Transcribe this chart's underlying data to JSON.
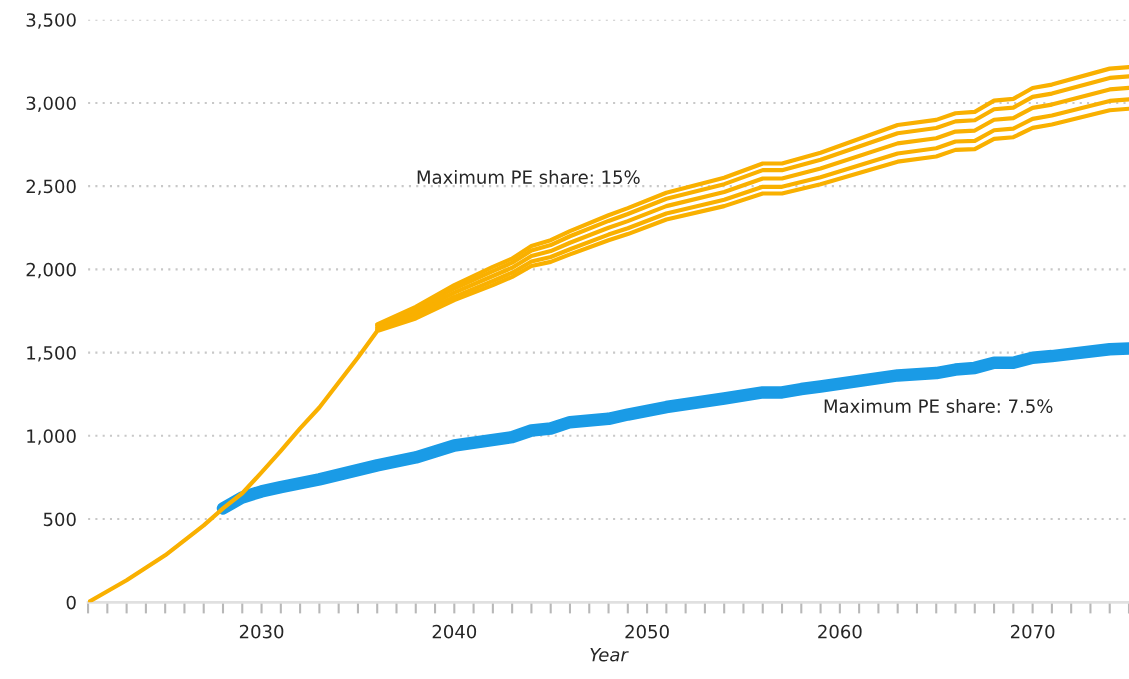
{
  "chart_data": {
    "type": "line",
    "xlabel": "Year",
    "xlim": [
      2021,
      2075
    ],
    "xticks": [
      {
        "value": 2021,
        "label": null
      },
      {
        "value": 2022,
        "label": null
      },
      {
        "value": 2023,
        "label": null
      },
      {
        "value": 2024,
        "label": null
      },
      {
        "value": 2025,
        "label": null
      },
      {
        "value": 2026,
        "label": null
      },
      {
        "value": 2027,
        "label": null
      },
      {
        "value": 2028,
        "label": null
      },
      {
        "value": 2029,
        "label": null
      },
      2030,
      {
        "value": 2031,
        "label": null
      },
      {
        "value": 2032,
        "label": null
      },
      {
        "value": 2033,
        "label": null
      },
      {
        "value": 2034,
        "label": null
      },
      {
        "value": 2035,
        "label": null
      },
      {
        "value": 2036,
        "label": null
      },
      {
        "value": 2037,
        "label": null
      },
      {
        "value": 2038,
        "label": null
      },
      {
        "value": 2039,
        "label": null
      },
      2040,
      {
        "value": 2041,
        "label": null
      },
      {
        "value": 2042,
        "label": null
      },
      {
        "value": 2043,
        "label": null
      },
      {
        "value": 2044,
        "label": null
      },
      {
        "value": 2045,
        "label": null
      },
      {
        "value": 2046,
        "label": null
      },
      {
        "value": 2047,
        "label": null
      },
      {
        "value": 2048,
        "label": null
      },
      {
        "value": 2049,
        "label": null
      },
      2050,
      {
        "value": 2051,
        "label": null
      },
      {
        "value": 2052,
        "label": null
      },
      {
        "value": 2053,
        "label": null
      },
      {
        "value": 2054,
        "label": null
      },
      {
        "value": 2055,
        "label": null
      },
      {
        "value": 2056,
        "label": null
      },
      {
        "value": 2057,
        "label": null
      },
      {
        "value": 2058,
        "label": null
      },
      {
        "value": 2059,
        "label": null
      },
      2060,
      {
        "value": 2061,
        "label": null
      },
      {
        "value": 2062,
        "label": null
      },
      {
        "value": 2063,
        "label": null
      },
      {
        "value": 2064,
        "label": null
      },
      {
        "value": 2065,
        "label": null
      },
      {
        "value": 2066,
        "label": null
      },
      {
        "value": 2067,
        "label": null
      },
      {
        "value": 2068,
        "label": null
      },
      {
        "value": 2069,
        "label": null
      },
      2070,
      {
        "value": 2071,
        "label": null
      },
      {
        "value": 2072,
        "label": null
      },
      {
        "value": 2073,
        "label": null
      },
      {
        "value": 2074,
        "label": null
      },
      {
        "value": 2075,
        "label": null
      }
    ],
    "ylim": [
      0,
      3500
    ],
    "yticks": [
      0,
      500,
      {
        "value": 1000,
        "label": "1,000"
      },
      {
        "value": 1500,
        "label": "1,500"
      },
      {
        "value": 2000,
        "label": "2,000"
      },
      {
        "value": 2500,
        "label": "2,500"
      },
      {
        "value": 3000,
        "label": "3,000"
      },
      {
        "value": 3500,
        "label": "3,500"
      }
    ],
    "grid": "y",
    "legend": false,
    "marker": "none",
    "line_style": "solid",
    "annotations": [
      "Maximum PE share: 15%",
      "Maximum PE share: 7.5%"
    ],
    "series": [
      {
        "color": "#f9b000",
        "x": [
          2036,
          2038,
          2040,
          2042,
          2043,
          2044,
          2045,
          2046,
          2048,
          2049,
          2051,
          2054,
          2056,
          2057,
          2059,
          2063,
          2065,
          2066,
          2067,
          2068,
          2069,
          2070,
          2071,
          2074,
          2075
        ],
        "values": [
          1670,
          1775,
          1905,
          2015,
          2065,
          2140,
          2175,
          2230,
          2325,
          2368,
          2460,
          2550,
          2636,
          2636,
          2701,
          2867,
          2898,
          2938,
          2946,
          3014,
          3024,
          3090,
          3110,
          3206,
          3215
        ]
      },
      {
        "color": "#f9b000",
        "x": [
          2036,
          2038,
          2040,
          2042,
          2043,
          2044,
          2045,
          2046,
          2048,
          2049,
          2051,
          2054,
          2056,
          2057,
          2059,
          2063,
          2065,
          2066,
          2067,
          2068,
          2069,
          2070,
          2071,
          2074,
          2075
        ],
        "values": [
          1661,
          1759,
          1885,
          1990,
          2040,
          2113,
          2146,
          2199,
          2291,
          2333,
          2424,
          2512,
          2596,
          2596,
          2658,
          2818,
          2849,
          2889,
          2896,
          2962,
          2972,
          3036,
          3056,
          3150,
          3159
        ]
      },
      {
        "color": "#f9b000",
        "x": [
          2036,
          2038,
          2040,
          2042,
          2043,
          2044,
          2045,
          2046,
          2048,
          2049,
          2051,
          2054,
          2056,
          2057,
          2059,
          2063,
          2065,
          2066,
          2067,
          2068,
          2069,
          2070,
          2071,
          2074,
          2075
        ],
        "values": [
          1650,
          1740,
          1860,
          1960,
          2010,
          2080,
          2110,
          2160,
          2250,
          2290,
          2380,
          2465,
          2546,
          2546,
          2606,
          2757,
          2788,
          2828,
          2834,
          2899,
          2909,
          2970,
          2990,
          3081,
          3090
        ]
      },
      {
        "color": "#f9b000",
        "x": [
          2036,
          2038,
          2040,
          2042,
          2043,
          2044,
          2045,
          2046,
          2048,
          2049,
          2051,
          2054,
          2056,
          2057,
          2059,
          2063,
          2065,
          2066,
          2067,
          2068,
          2069,
          2070,
          2071,
          2074,
          2075
        ],
        "values": [
          1639,
          1721,
          1835,
          1930,
          1980,
          2047,
          2074,
          2121,
          2209,
          2247,
          2336,
          2418,
          2496,
          2496,
          2554,
          2696,
          2728,
          2768,
          2772,
          2836,
          2846,
          2904,
          2924,
          3012,
          3021
        ]
      },
      {
        "color": "#f9b000",
        "x": [
          2021,
          2023,
          2025,
          2027,
          2028,
          2029,
          2030,
          2031,
          2032,
          2033,
          2034,
          2035,
          2036,
          2038,
          2040,
          2042,
          2043,
          2044,
          2045,
          2046,
          2048,
          2049,
          2051,
          2054,
          2056,
          2057,
          2059,
          2063,
          2065,
          2066,
          2067,
          2068,
          2069,
          2070,
          2071,
          2074,
          2075
        ],
        "values": [
          0,
          132,
          282,
          462,
          564,
          655,
          780,
          910,
          1045,
          1170,
          1320,
          1470,
          1630,
          1705,
          1815,
          1905,
          1955,
          2020,
          2045,
          2090,
          2175,
          2212,
          2300,
          2380,
          2456,
          2456,
          2511,
          2647,
          2678,
          2718,
          2722,
          2784,
          2794,
          2850,
          2870,
          2956,
          2965
        ]
      },
      {
        "color": "#1a9be6",
        "x": [
          2028,
          2029,
          2030,
          2031,
          2033,
          2036,
          2038,
          2040,
          2043,
          2044,
          2045,
          2046,
          2048,
          2049,
          2051,
          2054,
          2056,
          2057,
          2058,
          2059,
          2063,
          2065,
          2066,
          2067,
          2068,
          2069,
          2070,
          2071,
          2074,
          2075
        ],
        "values": [
          564,
          630,
          666,
          692,
          738,
          822,
          870,
          942,
          992,
          1032,
          1044,
          1082,
          1102,
          1128,
          1173,
          1224,
          1261,
          1261,
          1281,
          1296,
          1363,
          1377,
          1398,
          1408,
          1439,
          1439,
          1469,
          1479,
          1520,
          1524
        ]
      }
    ]
  }
}
